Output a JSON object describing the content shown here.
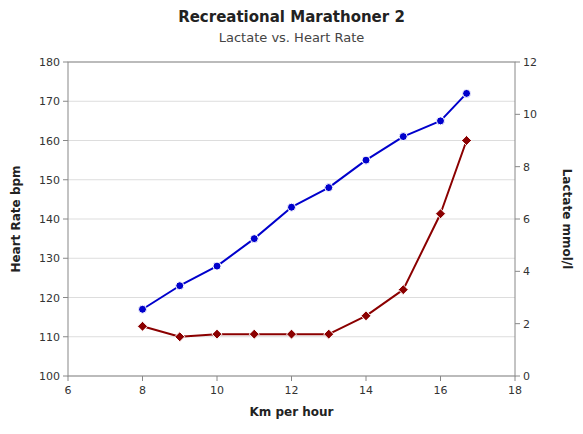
{
  "chart_data": {
    "type": "line",
    "title": "Recreational Marathoner 2",
    "subtitle": "Lactate vs. Heart Rate",
    "xlabel": "Km per hour",
    "ylabel": "Heart Rate bpm",
    "y2label": "Lactate mmol/l",
    "x": [
      8,
      9,
      10,
      11,
      12,
      13,
      14,
      15,
      16,
      16.7
    ],
    "series": [
      {
        "color": "#0000CC",
        "marker": "circle",
        "values": [
          117,
          123,
          128,
          135,
          143,
          148,
          155,
          161,
          165,
          172
        ]
      },
      {
        "color": "#8B0000",
        "marker": "diamond",
        "axis": "y2",
        "values": [
          1.9,
          1.5,
          1.6,
          1.6,
          1.6,
          1.6,
          2.3,
          3.3,
          6.2,
          9.0
        ]
      }
    ],
    "xlim": [
      6,
      18
    ],
    "ylim": [
      100,
      180
    ],
    "y2lim": [
      0,
      12
    ],
    "xticks": [
      6,
      8,
      10,
      12,
      14,
      16,
      18
    ],
    "yticks": [
      100,
      110,
      120,
      130,
      140,
      150,
      160,
      170,
      180
    ],
    "y2ticks": [
      0,
      2,
      4,
      6,
      8,
      10,
      12
    ],
    "grid": true
  }
}
